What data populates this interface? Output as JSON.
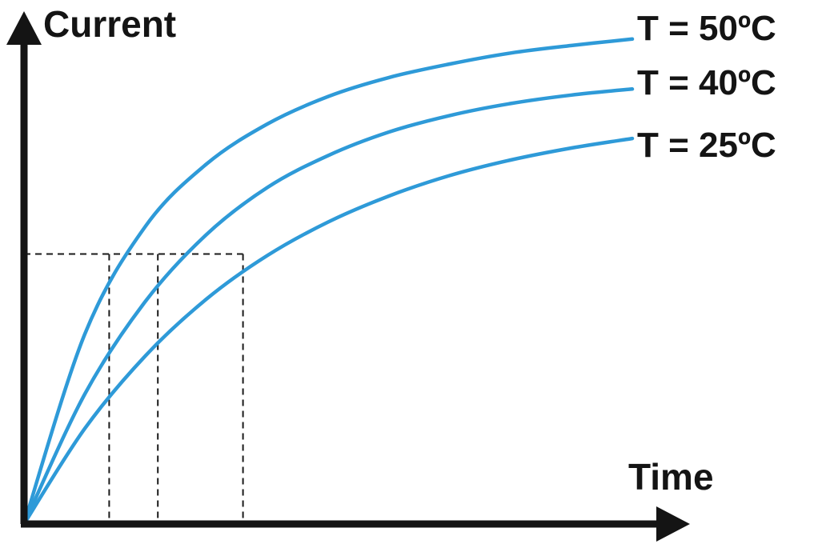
{
  "chart_data": {
    "type": "line",
    "xlabel": "Time",
    "ylabel": "Current",
    "xlim": [
      0,
      10
    ],
    "ylim": [
      0,
      10
    ],
    "series": [
      {
        "name": "T = 50ºC",
        "color": "#2e9ad8",
        "x": [
          0,
          1,
          2,
          3,
          4,
          5,
          6,
          7,
          8,
          9,
          10
        ],
        "y": [
          0,
          3.8,
          5.96,
          7.2,
          8.0,
          8.55,
          8.93,
          9.2,
          9.42,
          9.57,
          9.7
        ]
      },
      {
        "name": "T = 40ºC",
        "color": "#2e9ad8",
        "x": [
          0,
          1,
          2,
          3,
          4,
          5,
          6,
          7,
          8,
          9,
          10
        ],
        "y": [
          0,
          2.6,
          4.46,
          5.79,
          6.73,
          7.37,
          7.84,
          8.17,
          8.41,
          8.58,
          8.7
        ]
      },
      {
        "name": "T = 25ºC",
        "color": "#2e9ad8",
        "x": [
          0,
          1,
          2,
          3,
          4,
          5,
          6,
          7,
          8,
          9,
          10
        ],
        "y": [
          0,
          1.91,
          3.37,
          4.5,
          5.37,
          6.04,
          6.56,
          6.97,
          7.28,
          7.52,
          7.71
        ]
      }
    ],
    "reference_level": 5.4,
    "reference_times": [
      1.4,
      2.2,
      3.6
    ],
    "axis_color": "#141414",
    "reference_color": "#1a1a1a"
  }
}
